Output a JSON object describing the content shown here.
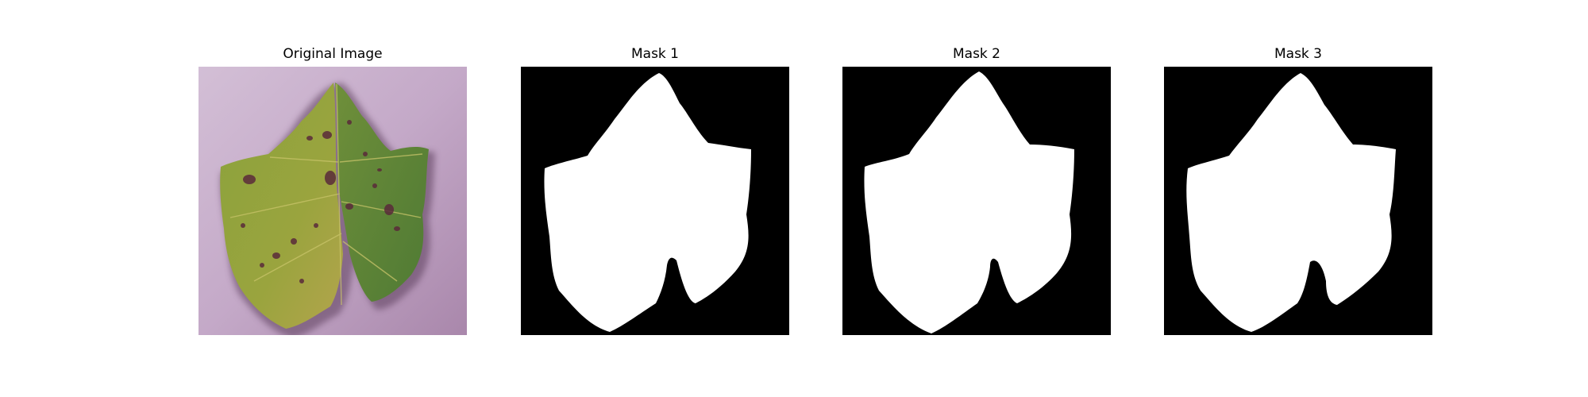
{
  "figure": {
    "panels": [
      {
        "title": "Original Image",
        "kind": "photo",
        "description_icon": "grape-leaf-photo"
      },
      {
        "title": "Mask 1",
        "kind": "binary-mask"
      },
      {
        "title": "Mask 2",
        "kind": "binary-mask"
      },
      {
        "title": "Mask 3",
        "kind": "binary-mask"
      }
    ],
    "colors": {
      "background": "#ffffff",
      "mask_foreground": "#ffffff",
      "mask_background": "#000000",
      "photo_backdrop": "#c7aecb",
      "leaf_green": "#7f9a3a",
      "leaf_spot": "#5a2a3a"
    }
  }
}
